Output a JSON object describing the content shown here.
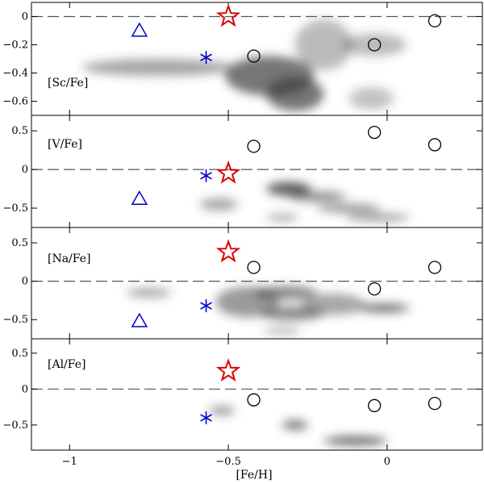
{
  "chart_data": {
    "type": "scatter",
    "xlabel": "[Fe/H]",
    "xlim": [
      -1.12,
      0.3
    ],
    "x_ticks": [
      -1,
      -0.5,
      0
    ],
    "x_tick_labels": [
      "−1",
      "−0.5",
      "0"
    ],
    "grid": false,
    "legend": "none",
    "marker_colors": {
      "star": "#dd0000",
      "asterisk": "#0000cc",
      "triangle": "#0000cc",
      "circle": "#000000"
    },
    "panels": [
      {
        "label": "[Sc/Fe]",
        "ylim": [
          -0.7,
          0.1
        ],
        "y_ticks": [
          0,
          -0.2,
          -0.4,
          -0.6
        ],
        "y_tick_labels": [
          "0",
          "−0.2",
          "−0.4",
          "−0.6"
        ],
        "reference_line": 0,
        "series": [
          {
            "marker": "star",
            "points": [
              [
                -0.5,
                0.0
              ]
            ]
          },
          {
            "marker": "asterisk",
            "points": [
              [
                -0.57,
                -0.29
              ]
            ]
          },
          {
            "marker": "triangle",
            "points": [
              [
                -0.78,
                -0.1
              ]
            ]
          },
          {
            "marker": "circle",
            "points": [
              [
                -0.42,
                -0.28
              ],
              [
                -0.04,
                -0.2
              ],
              [
                0.15,
                -0.03
              ]
            ]
          }
        ],
        "density_blobs": [
          {
            "cx": -0.72,
            "cy": -0.36,
            "rx": 0.24,
            "ry": 0.06,
            "alpha": 0.45
          },
          {
            "cx": -0.37,
            "cy": -0.42,
            "rx": 0.14,
            "ry": 0.14,
            "alpha": 0.7
          },
          {
            "cx": -0.29,
            "cy": -0.55,
            "rx": 0.09,
            "ry": 0.12,
            "alpha": 0.7
          },
          {
            "cx": -0.2,
            "cy": -0.2,
            "rx": 0.09,
            "ry": 0.18,
            "alpha": 0.35
          },
          {
            "cx": -0.04,
            "cy": -0.2,
            "rx": 0.1,
            "ry": 0.08,
            "alpha": 0.35
          },
          {
            "cx": -0.05,
            "cy": -0.58,
            "rx": 0.07,
            "ry": 0.08,
            "alpha": 0.3
          }
        ]
      },
      {
        "label": "[V/Fe]",
        "ylim": [
          -0.75,
          0.7
        ],
        "y_ticks": [
          0.5,
          0,
          -0.5
        ],
        "y_tick_labels": [
          "0.5",
          "0",
          "−0.5"
        ],
        "reference_line": 0,
        "series": [
          {
            "marker": "star",
            "points": [
              [
                -0.5,
                -0.05
              ]
            ]
          },
          {
            "marker": "asterisk",
            "points": [
              [
                -0.57,
                -0.08
              ]
            ]
          },
          {
            "marker": "triangle",
            "points": [
              [
                -0.78,
                -0.38
              ]
            ]
          },
          {
            "marker": "circle",
            "points": [
              [
                -0.42,
                0.3
              ],
              [
                -0.04,
                0.48
              ],
              [
                0.15,
                0.32
              ]
            ]
          }
        ],
        "density_blobs": [
          {
            "cx": -0.53,
            "cy": -0.45,
            "rx": 0.06,
            "ry": 0.08,
            "alpha": 0.45
          },
          {
            "cx": -0.31,
            "cy": -0.25,
            "rx": 0.07,
            "ry": 0.09,
            "alpha": 0.8
          },
          {
            "cx": -0.22,
            "cy": -0.35,
            "rx": 0.09,
            "ry": 0.07,
            "alpha": 0.55
          },
          {
            "cx": -0.12,
            "cy": -0.5,
            "rx": 0.1,
            "ry": 0.06,
            "alpha": 0.5
          },
          {
            "cx": -0.03,
            "cy": -0.62,
            "rx": 0.1,
            "ry": 0.05,
            "alpha": 0.5
          },
          {
            "cx": -0.33,
            "cy": -0.62,
            "rx": 0.05,
            "ry": 0.05,
            "alpha": 0.4
          }
        ]
      },
      {
        "label": "[Na/Fe]",
        "ylim": [
          -0.75,
          0.7
        ],
        "y_ticks": [
          0.5,
          0,
          -0.5
        ],
        "y_tick_labels": [
          "0.5",
          "0",
          "−0.5"
        ],
        "reference_line": 0,
        "series": [
          {
            "marker": "star",
            "points": [
              [
                -0.5,
                0.38
              ]
            ]
          },
          {
            "marker": "asterisk",
            "points": [
              [
                -0.57,
                -0.32
              ]
            ]
          },
          {
            "marker": "triangle",
            "points": [
              [
                -0.78,
                -0.52
              ]
            ]
          },
          {
            "marker": "circle",
            "points": [
              [
                -0.42,
                0.18
              ],
              [
                -0.04,
                -0.1
              ],
              [
                0.15,
                0.18
              ]
            ]
          }
        ],
        "density_blobs": [
          {
            "cx": -0.75,
            "cy": -0.15,
            "rx": 0.07,
            "ry": 0.06,
            "alpha": 0.45
          },
          {
            "cx": -0.44,
            "cy": -0.27,
            "rx": 0.1,
            "ry": 0.2,
            "alpha": 0.5
          },
          {
            "cx": -0.32,
            "cy": -0.15,
            "rx": 0.1,
            "ry": 0.09,
            "alpha": 0.6
          },
          {
            "cx": -0.3,
            "cy": -0.42,
            "rx": 0.1,
            "ry": 0.09,
            "alpha": 0.6
          },
          {
            "cx": -0.17,
            "cy": -0.3,
            "rx": 0.1,
            "ry": 0.14,
            "alpha": 0.45
          },
          {
            "cx": -0.01,
            "cy": -0.35,
            "rx": 0.08,
            "ry": 0.06,
            "alpha": 0.7
          },
          {
            "cx": -0.33,
            "cy": -0.65,
            "rx": 0.06,
            "ry": 0.05,
            "alpha": 0.35
          }
        ]
      },
      {
        "label": "[Al/Fe]",
        "ylim": [
          -0.85,
          0.7
        ],
        "y_ticks": [
          0.5,
          0,
          -0.5
        ],
        "y_tick_labels": [
          "0.5",
          "0",
          "−0.5"
        ],
        "reference_line": 0,
        "series": [
          {
            "marker": "star",
            "points": [
              [
                -0.5,
                0.25
              ]
            ]
          },
          {
            "marker": "asterisk",
            "points": [
              [
                -0.57,
                -0.4
              ]
            ]
          },
          {
            "marker": "triangle",
            "points": []
          },
          {
            "marker": "circle",
            "points": [
              [
                -0.42,
                -0.15
              ],
              [
                -0.04,
                -0.23
              ],
              [
                0.15,
                -0.2
              ]
            ]
          }
        ],
        "density_blobs": [
          {
            "cx": -0.52,
            "cy": -0.3,
            "rx": 0.04,
            "ry": 0.06,
            "alpha": 0.55
          },
          {
            "cx": -0.29,
            "cy": -0.5,
            "rx": 0.04,
            "ry": 0.07,
            "alpha": 0.65
          },
          {
            "cx": -0.1,
            "cy": -0.72,
            "rx": 0.1,
            "ry": 0.07,
            "alpha": 0.7
          }
        ]
      }
    ]
  }
}
